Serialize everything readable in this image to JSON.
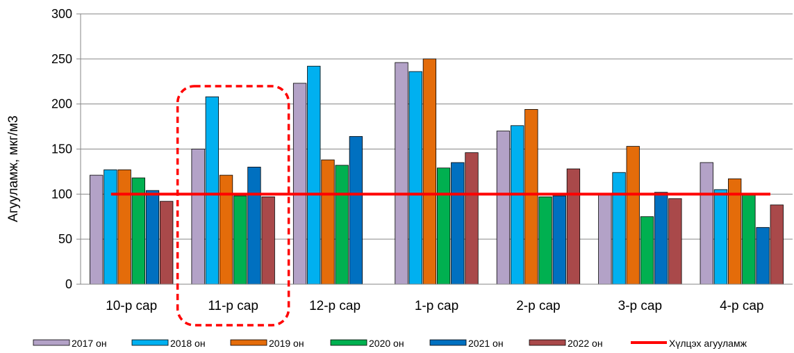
{
  "chart_data": {
    "type": "bar",
    "title": "",
    "xlabel": "",
    "ylabel": "Агууламж, мкг/м3",
    "ylim": [
      0,
      300
    ],
    "yticks": [
      0,
      50,
      100,
      150,
      200,
      250,
      300
    ],
    "grid": true,
    "legend_position": "bottom",
    "categories": [
      "10-р сар",
      "11-р сар",
      "12-р сар",
      "1-р сар",
      "2-р сар",
      "3-р сар",
      "4-р сар"
    ],
    "series": [
      {
        "name": "2017 он",
        "color": "#b3a2c7",
        "values": [
          121,
          150,
          223,
          246,
          170,
          100,
          135
        ]
      },
      {
        "name": "2018 он",
        "color": "#00b0f0",
        "values": [
          127,
          208,
          242,
          236,
          176,
          124,
          105
        ]
      },
      {
        "name": "2019 он",
        "color": "#e46c0a",
        "values": [
          127,
          121,
          138,
          250,
          194,
          153,
          117
        ]
      },
      {
        "name": "2020 он",
        "color": "#00b050",
        "values": [
          118,
          98,
          132,
          129,
          97,
          75,
          99
        ]
      },
      {
        "name": "2021 он",
        "color": "#0070c0",
        "values": [
          104,
          130,
          164,
          135,
          98,
          102,
          63
        ]
      },
      {
        "name": "2022 он",
        "color": "#a9494a",
        "values": [
          92,
          97,
          null,
          146,
          128,
          95,
          88
        ]
      }
    ],
    "reference_line": {
      "name": "Хүлцэх агууламж",
      "value": 100,
      "color": "#ff0000"
    },
    "highlight": {
      "category": "11-р сар",
      "style": "dashed",
      "color": "#ff0000"
    }
  }
}
